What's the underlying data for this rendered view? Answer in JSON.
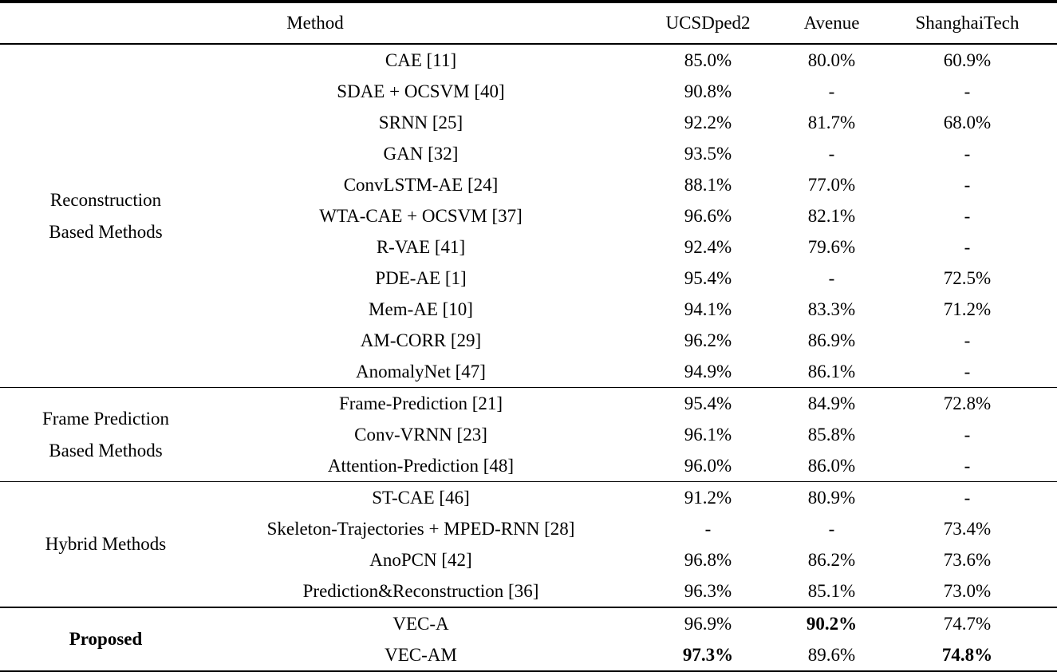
{
  "table": {
    "header": {
      "method_label": "Method",
      "datasets": [
        "UCSDped2",
        "Avenue",
        "ShanghaiTech"
      ]
    },
    "text_color": "#000000",
    "background_color": "#ffffff",
    "sections": [
      {
        "id": "reconstruction-based",
        "group_lines": [
          "Reconstruction",
          "Based Methods"
        ],
        "group_bold": false,
        "emphasized": false,
        "rows": [
          {
            "method": "CAE [11]",
            "values": [
              "85.0%",
              "80.0%",
              "60.9%"
            ],
            "bold": [
              false,
              false,
              false
            ]
          },
          {
            "method": "SDAE + OCSVM [40]",
            "values": [
              "90.8%",
              "-",
              "-"
            ],
            "bold": [
              false,
              false,
              false
            ]
          },
          {
            "method": "SRNN [25]",
            "values": [
              "92.2%",
              "81.7%",
              "68.0%"
            ],
            "bold": [
              false,
              false,
              false
            ]
          },
          {
            "method": "GAN [32]",
            "values": [
              "93.5%",
              "-",
              "-"
            ],
            "bold": [
              false,
              false,
              false
            ]
          },
          {
            "method": "ConvLSTM-AE [24]",
            "values": [
              "88.1%",
              "77.0%",
              "-"
            ],
            "bold": [
              false,
              false,
              false
            ]
          },
          {
            "method": "WTA-CAE + OCSVM [37]",
            "values": [
              "96.6%",
              "82.1%",
              "-"
            ],
            "bold": [
              false,
              false,
              false
            ]
          },
          {
            "method": "R-VAE [41]",
            "values": [
              "92.4%",
              "79.6%",
              "-"
            ],
            "bold": [
              false,
              false,
              false
            ]
          },
          {
            "method": "PDE-AE [1]",
            "values": [
              "95.4%",
              "-",
              "72.5%"
            ],
            "bold": [
              false,
              false,
              false
            ]
          },
          {
            "method": "Mem-AE [10]",
            "values": [
              "94.1%",
              "83.3%",
              "71.2%"
            ],
            "bold": [
              false,
              false,
              false
            ]
          },
          {
            "method": "AM-CORR [29]",
            "values": [
              "96.2%",
              "86.9%",
              "-"
            ],
            "bold": [
              false,
              false,
              false
            ]
          },
          {
            "method": "AnomalyNet [47]",
            "values": [
              "94.9%",
              "86.1%",
              "-"
            ],
            "bold": [
              false,
              false,
              false
            ]
          }
        ]
      },
      {
        "id": "frame-prediction-based",
        "group_lines": [
          "Frame Prediction",
          "Based Methods"
        ],
        "group_bold": false,
        "emphasized": false,
        "rows": [
          {
            "method": "Frame-Prediction [21]",
            "values": [
              "95.4%",
              "84.9%",
              "72.8%"
            ],
            "bold": [
              false,
              false,
              false
            ]
          },
          {
            "method": "Conv-VRNN [23]",
            "values": [
              "96.1%",
              "85.8%",
              "-"
            ],
            "bold": [
              false,
              false,
              false
            ]
          },
          {
            "method": "Attention-Prediction [48]",
            "values": [
              "96.0%",
              "86.0%",
              "-"
            ],
            "bold": [
              false,
              false,
              false
            ]
          }
        ]
      },
      {
        "id": "hybrid",
        "group_lines": [
          "Hybrid Methods"
        ],
        "group_bold": false,
        "emphasized": false,
        "rows": [
          {
            "method": "ST-CAE [46]",
            "values": [
              "91.2%",
              "80.9%",
              "-"
            ],
            "bold": [
              false,
              false,
              false
            ]
          },
          {
            "method": "Skeleton-Trajectories + MPED-RNN [28]",
            "values": [
              "-",
              "-",
              "73.4%"
            ],
            "bold": [
              false,
              false,
              false
            ]
          },
          {
            "method": "AnoPCN [42]",
            "values": [
              "96.8%",
              "86.2%",
              "73.6%"
            ],
            "bold": [
              false,
              false,
              false
            ]
          },
          {
            "method": "Prediction&Reconstruction [36]",
            "values": [
              "96.3%",
              "85.1%",
              "73.0%"
            ],
            "bold": [
              false,
              false,
              false
            ]
          }
        ]
      },
      {
        "id": "proposed",
        "group_lines": [
          "Proposed"
        ],
        "group_bold": true,
        "emphasized": true,
        "rows": [
          {
            "method": "VEC-A",
            "values": [
              "96.9%",
              "90.2%",
              "74.7%"
            ],
            "bold": [
              false,
              true,
              false
            ]
          },
          {
            "method": "VEC-AM",
            "values": [
              "97.3%",
              "89.6%",
              "74.8%"
            ],
            "bold": [
              true,
              false,
              true
            ]
          }
        ]
      }
    ]
  }
}
